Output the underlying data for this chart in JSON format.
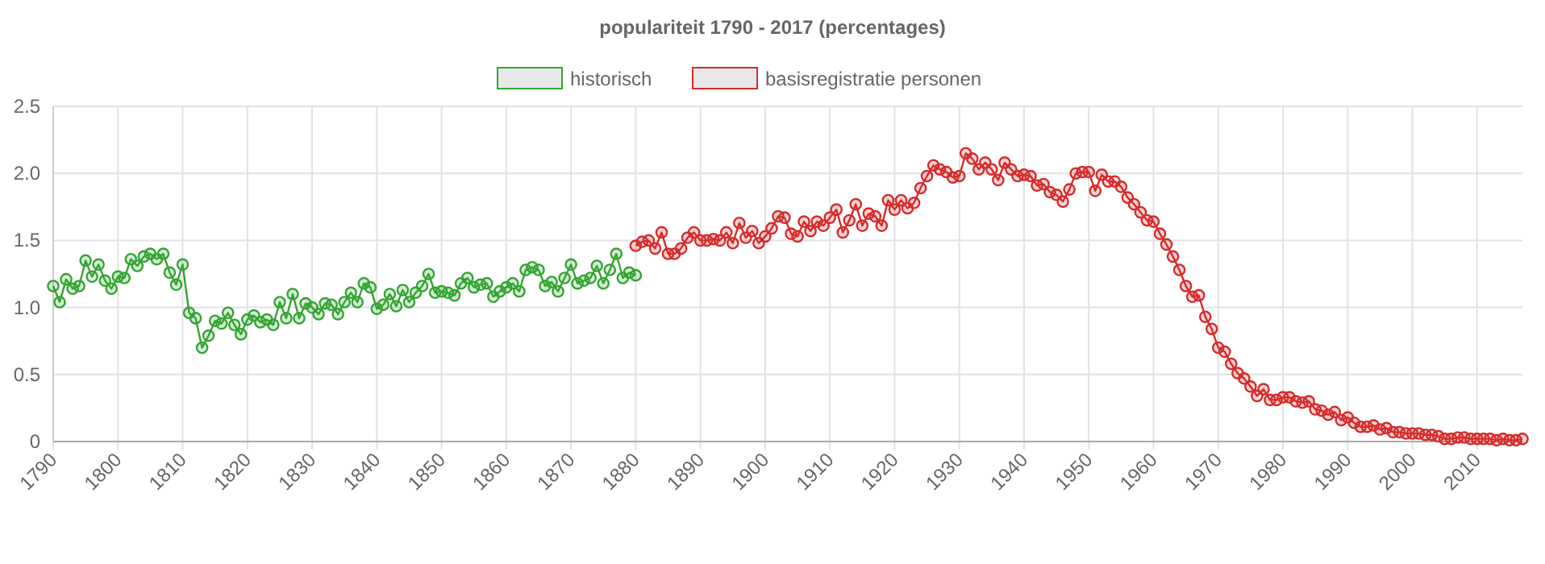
{
  "chart_data": {
    "type": "line",
    "title": "populariteit 1790 - 2017 (percentages)",
    "xlim": [
      1790,
      2017
    ],
    "xticks": [
      1790,
      1800,
      1810,
      1820,
      1830,
      1840,
      1850,
      1860,
      1870,
      1880,
      1890,
      1900,
      1910,
      1920,
      1930,
      1940,
      1950,
      1960,
      1970,
      1980,
      1990,
      2000,
      2010
    ],
    "ylim": [
      0,
      2.5
    ],
    "yticks": [
      {
        "value": 0,
        "label": "0"
      },
      {
        "value": 0.5,
        "label": "0.5"
      },
      {
        "value": 1,
        "label": "1.0"
      },
      {
        "value": 1.5,
        "label": "1.5"
      },
      {
        "value": 2,
        "label": "2.0"
      },
      {
        "value": 2.5,
        "label": "2.5"
      }
    ],
    "grid": true,
    "legend": "top",
    "marker": "circle",
    "line_style": "solid",
    "series": [
      {
        "name": "historisch",
        "color": "#33a532",
        "x": [
          1790,
          1791,
          1792,
          1793,
          1794,
          1795,
          1796,
          1797,
          1798,
          1799,
          1800,
          1801,
          1802,
          1803,
          1804,
          1805,
          1806,
          1807,
          1808,
          1809,
          1810,
          1811,
          1812,
          1813,
          1814,
          1815,
          1816,
          1817,
          1818,
          1819,
          1820,
          1821,
          1822,
          1823,
          1824,
          1825,
          1826,
          1827,
          1828,
          1829,
          1830,
          1831,
          1832,
          1833,
          1834,
          1835,
          1836,
          1837,
          1838,
          1839,
          1840,
          1841,
          1842,
          1843,
          1844,
          1845,
          1846,
          1847,
          1848,
          1849,
          1850,
          1851,
          1852,
          1853,
          1854,
          1855,
          1856,
          1857,
          1858,
          1859,
          1860,
          1861,
          1862,
          1863,
          1864,
          1865,
          1866,
          1867,
          1868,
          1869,
          1870,
          1871,
          1872,
          1873,
          1874,
          1875,
          1876,
          1877,
          1878,
          1879,
          1880
        ],
        "values": [
          1.16,
          1.04,
          1.21,
          1.14,
          1.16,
          1.35,
          1.23,
          1.32,
          1.2,
          1.14,
          1.23,
          1.22,
          1.36,
          1.31,
          1.38,
          1.4,
          1.36,
          1.4,
          1.26,
          1.17,
          1.32,
          0.96,
          0.92,
          0.7,
          0.79,
          0.9,
          0.88,
          0.96,
          0.87,
          0.8,
          0.91,
          0.94,
          0.89,
          0.91,
          0.87,
          1.04,
          0.92,
          1.1,
          0.92,
          1.03,
          1.0,
          0.95,
          1.03,
          1.02,
          0.95,
          1.04,
          1.11,
          1.04,
          1.18,
          1.15,
          0.99,
          1.02,
          1.1,
          1.01,
          1.13,
          1.04,
          1.11,
          1.16,
          1.25,
          1.11,
          1.12,
          1.11,
          1.09,
          1.18,
          1.22,
          1.15,
          1.17,
          1.18,
          1.08,
          1.12,
          1.15,
          1.18,
          1.12,
          1.28,
          1.3,
          1.28,
          1.16,
          1.19,
          1.12,
          1.22,
          1.32,
          1.18,
          1.2,
          1.22,
          1.31,
          1.18,
          1.28,
          1.4,
          1.22,
          1.26,
          1.24
        ]
      },
      {
        "name": "basisregistratie personen",
        "color": "#d62b2b",
        "x": [
          1880,
          1881,
          1882,
          1883,
          1884,
          1885,
          1886,
          1887,
          1888,
          1889,
          1890,
          1891,
          1892,
          1893,
          1894,
          1895,
          1896,
          1897,
          1898,
          1899,
          1900,
          1901,
          1902,
          1903,
          1904,
          1905,
          1906,
          1907,
          1908,
          1909,
          1910,
          1911,
          1912,
          1913,
          1914,
          1915,
          1916,
          1917,
          1918,
          1919,
          1920,
          1921,
          1922,
          1923,
          1924,
          1925,
          1926,
          1927,
          1928,
          1929,
          1930,
          1931,
          1932,
          1933,
          1934,
          1935,
          1936,
          1937,
          1938,
          1939,
          1940,
          1941,
          1942,
          1943,
          1944,
          1945,
          1946,
          1947,
          1948,
          1949,
          1950,
          1951,
          1952,
          1953,
          1954,
          1955,
          1956,
          1957,
          1958,
          1959,
          1960,
          1961,
          1962,
          1963,
          1964,
          1965,
          1966,
          1967,
          1968,
          1969,
          1970,
          1971,
          1972,
          1973,
          1974,
          1975,
          1976,
          1977,
          1978,
          1979,
          1980,
          1981,
          1982,
          1983,
          1984,
          1985,
          1986,
          1987,
          1988,
          1989,
          1990,
          1991,
          1992,
          1993,
          1994,
          1995,
          1996,
          1997,
          1998,
          1999,
          2000,
          2001,
          2002,
          2003,
          2004,
          2005,
          2006,
          2007,
          2008,
          2009,
          2010,
          2011,
          2012,
          2013,
          2014,
          2015,
          2016,
          2017
        ],
        "values": [
          1.46,
          1.49,
          1.5,
          1.44,
          1.56,
          1.4,
          1.4,
          1.44,
          1.52,
          1.56,
          1.5,
          1.5,
          1.51,
          1.5,
          1.56,
          1.48,
          1.63,
          1.52,
          1.57,
          1.48,
          1.53,
          1.59,
          1.68,
          1.67,
          1.55,
          1.53,
          1.64,
          1.57,
          1.64,
          1.61,
          1.67,
          1.73,
          1.56,
          1.65,
          1.77,
          1.61,
          1.7,
          1.68,
          1.61,
          1.8,
          1.73,
          1.8,
          1.74,
          1.78,
          1.89,
          1.98,
          2.06,
          2.03,
          2.01,
          1.97,
          1.98,
          2.15,
          2.11,
          2.03,
          2.08,
          2.03,
          1.95,
          2.08,
          2.03,
          1.98,
          1.99,
          1.98,
          1.91,
          1.92,
          1.86,
          1.84,
          1.79,
          1.88,
          2.0,
          2.01,
          2.01,
          1.87,
          1.99,
          1.94,
          1.94,
          1.9,
          1.82,
          1.77,
          1.71,
          1.65,
          1.64,
          1.55,
          1.47,
          1.38,
          1.28,
          1.16,
          1.08,
          1.09,
          0.93,
          0.84,
          0.7,
          0.67,
          0.58,
          0.51,
          0.47,
          0.41,
          0.34,
          0.39,
          0.31,
          0.31,
          0.33,
          0.33,
          0.3,
          0.29,
          0.3,
          0.24,
          0.23,
          0.2,
          0.22,
          0.16,
          0.18,
          0.14,
          0.11,
          0.11,
          0.12,
          0.09,
          0.1,
          0.07,
          0.07,
          0.06,
          0.06,
          0.06,
          0.05,
          0.05,
          0.04,
          0.02,
          0.02,
          0.03,
          0.03,
          0.02,
          0.02,
          0.02,
          0.02,
          0.01,
          0.02,
          0.01,
          0.01,
          0.02
        ]
      }
    ]
  }
}
